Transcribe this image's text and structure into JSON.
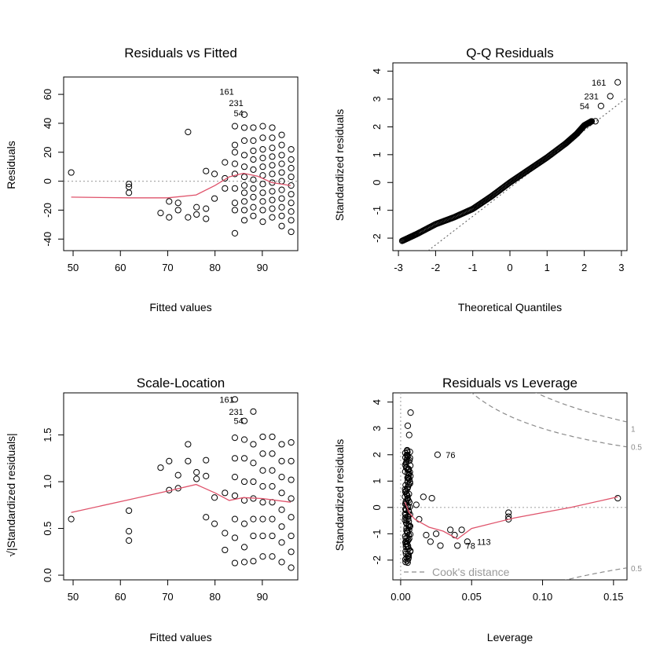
{
  "chart_data": [
    {
      "type": "scatter",
      "title": "Residuals vs Fitted",
      "xlabel": "Fitted values",
      "ylabel": "Residuals",
      "xlim": [
        48,
        97.5
      ],
      "ylim": [
        -48,
        72
      ],
      "xticks": [
        50,
        60,
        70,
        80,
        90
      ],
      "yticks": [
        -40,
        -20,
        0,
        20,
        40,
        60
      ],
      "ref_y": 0,
      "labels": [
        {
          "text": "161",
          "x": 84.5,
          "y": 62
        },
        {
          "text": "231",
          "x": 86.5,
          "y": 54
        },
        {
          "text": "54",
          "x": 86.5,
          "y": 47
        }
      ],
      "points": [
        [
          49.6,
          6
        ],
        [
          61.8,
          -2
        ],
        [
          61.8,
          -4
        ],
        [
          61.8,
          -8
        ],
        [
          68.5,
          -22
        ],
        [
          70.3,
          -25
        ],
        [
          70.3,
          -14
        ],
        [
          72.2,
          -20
        ],
        [
          72.2,
          -15
        ],
        [
          74.3,
          -25
        ],
        [
          74.3,
          34
        ],
        [
          76.1,
          -18
        ],
        [
          76.1,
          -23
        ],
        [
          78.1,
          -19
        ],
        [
          78.1,
          -26
        ],
        [
          78.1,
          7
        ],
        [
          79.9,
          -12
        ],
        [
          79.9,
          5
        ],
        [
          82.1,
          13
        ],
        [
          82.1,
          2
        ],
        [
          82.1,
          -5
        ],
        [
          84.2,
          -36
        ],
        [
          84.2,
          38
        ],
        [
          84.2,
          25
        ],
        [
          84.2,
          20
        ],
        [
          84.2,
          12
        ],
        [
          84.2,
          5
        ],
        [
          84.2,
          -5
        ],
        [
          84.2,
          -15
        ],
        [
          84.2,
          -20
        ],
        [
          86.2,
          46
        ],
        [
          86.2,
          37
        ],
        [
          86.2,
          28
        ],
        [
          86.2,
          18
        ],
        [
          86.2,
          10
        ],
        [
          86.2,
          3
        ],
        [
          86.2,
          -3
        ],
        [
          86.2,
          -8
        ],
        [
          86.2,
          -14
        ],
        [
          86.2,
          -20
        ],
        [
          86.2,
          -27
        ],
        [
          88.1,
          37
        ],
        [
          88.1,
          28
        ],
        [
          88.1,
          21
        ],
        [
          88.1,
          15
        ],
        [
          88.1,
          8
        ],
        [
          88.1,
          1
        ],
        [
          88.1,
          -5
        ],
        [
          88.1,
          -11
        ],
        [
          88.1,
          -18
        ],
        [
          88.1,
          -24
        ],
        [
          90.1,
          38
        ],
        [
          90.1,
          30
        ],
        [
          90.1,
          22
        ],
        [
          90.1,
          16
        ],
        [
          90.1,
          10
        ],
        [
          90.1,
          4
        ],
        [
          90.1,
          -2
        ],
        [
          90.1,
          -8
        ],
        [
          90.1,
          -14
        ],
        [
          90.1,
          -20
        ],
        [
          90.1,
          -28
        ],
        [
          92.1,
          37
        ],
        [
          92.1,
          30
        ],
        [
          92.1,
          23
        ],
        [
          92.1,
          17
        ],
        [
          92.1,
          11
        ],
        [
          92.1,
          5
        ],
        [
          92.1,
          -1
        ],
        [
          92.1,
          -7
        ],
        [
          92.1,
          -13
        ],
        [
          92.1,
          -19
        ],
        [
          92.1,
          -25
        ],
        [
          94.1,
          32
        ],
        [
          94.1,
          25
        ],
        [
          94.1,
          18
        ],
        [
          94.1,
          12
        ],
        [
          94.1,
          6
        ],
        [
          94.1,
          0
        ],
        [
          94.1,
          -6
        ],
        [
          94.1,
          -12
        ],
        [
          94.1,
          -18
        ],
        [
          94.1,
          -24
        ],
        [
          94.1,
          -31
        ],
        [
          96.1,
          22
        ],
        [
          96.1,
          15
        ],
        [
          96.1,
          9
        ],
        [
          96.1,
          3
        ],
        [
          96.1,
          -3
        ],
        [
          96.1,
          -9
        ],
        [
          96.1,
          -15
        ],
        [
          96.1,
          -21
        ],
        [
          96.1,
          -27
        ],
        [
          96.1,
          -35
        ]
      ],
      "smoother": [
        [
          49.6,
          -11
        ],
        [
          62,
          -11.5
        ],
        [
          70,
          -11.5
        ],
        [
          76,
          -9.5
        ],
        [
          80,
          -3
        ],
        [
          83,
          3
        ],
        [
          86,
          5.5
        ],
        [
          89,
          3.5
        ],
        [
          92,
          -1
        ],
        [
          96,
          -3
        ]
      ]
    },
    {
      "type": "scatter",
      "title": "Q-Q Residuals",
      "xlabel": "Theoretical Quantiles",
      "ylabel": "Standardized residuals",
      "xlim": [
        -3.15,
        3.15
      ],
      "ylim": [
        -2.45,
        4.3
      ],
      "xticks": [
        -3,
        -2,
        -1,
        0,
        1,
        2,
        3
      ],
      "yticks": [
        -2,
        -1,
        0,
        1,
        2,
        3,
        4
      ],
      "qqline": [
        [
          -2.2,
          -2.45
        ],
        [
          3.15,
          3.05
        ]
      ],
      "labels": [
        {
          "text": "161",
          "x": 2.65,
          "y": 3.6
        },
        {
          "text": "231",
          "x": 2.45,
          "y": 3.1
        },
        {
          "text": "54",
          "x": 2.2,
          "y": 2.75
        }
      ],
      "curve": [
        [
          -2.9,
          -2.1
        ],
        [
          -2.5,
          -1.85
        ],
        [
          -2.0,
          -1.5
        ],
        [
          -1.5,
          -1.25
        ],
        [
          -1.0,
          -0.95
        ],
        [
          -0.5,
          -0.5
        ],
        [
          0.0,
          0.0
        ],
        [
          0.5,
          0.45
        ],
        [
          1.0,
          0.9
        ],
        [
          1.5,
          1.4
        ],
        [
          1.8,
          1.75
        ],
        [
          2.0,
          2.05
        ],
        [
          2.2,
          2.2
        ]
      ],
      "tail_points": [
        [
          2.3,
          2.2
        ],
        [
          2.45,
          2.75
        ],
        [
          2.7,
          3.1
        ],
        [
          2.9,
          3.6
        ]
      ]
    },
    {
      "type": "scatter",
      "title": "Scale-Location",
      "xlabel": "Fitted values",
      "ylabel": "√|Standardized residuals|",
      "xlim": [
        48,
        97.5
      ],
      "ylim": [
        -0.05,
        1.95
      ],
      "xticks": [
        50,
        60,
        70,
        80,
        90
      ],
      "yticks": [
        0.0,
        0.5,
        1.0,
        1.5
      ],
      "labels": [
        {
          "text": "161",
          "x": 84.5,
          "y": 1.88
        },
        {
          "text": "231",
          "x": 86.5,
          "y": 1.75
        },
        {
          "text": "54",
          "x": 86.5,
          "y": 1.65
        }
      ],
      "points": [
        [
          49.6,
          0.6
        ],
        [
          61.8,
          0.37
        ],
        [
          61.8,
          0.47
        ],
        [
          61.8,
          0.69
        ],
        [
          68.5,
          1.15
        ],
        [
          70.3,
          1.22
        ],
        [
          70.3,
          0.91
        ],
        [
          72.2,
          1.07
        ],
        [
          72.2,
          0.93
        ],
        [
          74.3,
          1.22
        ],
        [
          74.3,
          1.4
        ],
        [
          76.1,
          1.03
        ],
        [
          76.1,
          1.1
        ],
        [
          78.1,
          1.23
        ],
        [
          78.1,
          1.06
        ],
        [
          78.1,
          0.62
        ],
        [
          79.9,
          0.83
        ],
        [
          79.9,
          0.55
        ],
        [
          82.1,
          0.88
        ],
        [
          82.1,
          0.45
        ],
        [
          82.1,
          0.27
        ],
        [
          84.2,
          1.88
        ],
        [
          84.2,
          1.47
        ],
        [
          84.2,
          1.25
        ],
        [
          84.2,
          1.05
        ],
        [
          84.2,
          0.85
        ],
        [
          84.2,
          0.6
        ],
        [
          84.2,
          0.4
        ],
        [
          84.2,
          0.13
        ],
        [
          86.2,
          1.65
        ],
        [
          86.2,
          1.45
        ],
        [
          86.2,
          1.25
        ],
        [
          86.2,
          1.0
        ],
        [
          86.2,
          0.8
        ],
        [
          86.2,
          0.55
        ],
        [
          86.2,
          0.3
        ],
        [
          86.2,
          0.14
        ],
        [
          88.1,
          1.75
        ],
        [
          88.1,
          1.4
        ],
        [
          88.1,
          1.2
        ],
        [
          88.1,
          1.0
        ],
        [
          88.1,
          0.82
        ],
        [
          88.1,
          0.6
        ],
        [
          88.1,
          0.42
        ],
        [
          88.1,
          0.15
        ],
        [
          90.1,
          1.48
        ],
        [
          90.1,
          1.3
        ],
        [
          90.1,
          1.12
        ],
        [
          90.1,
          0.95
        ],
        [
          90.1,
          0.78
        ],
        [
          90.1,
          0.6
        ],
        [
          90.1,
          0.42
        ],
        [
          90.1,
          0.2
        ],
        [
          92.1,
          1.48
        ],
        [
          92.1,
          1.3
        ],
        [
          92.1,
          1.12
        ],
        [
          92.1,
          0.95
        ],
        [
          92.1,
          0.78
        ],
        [
          92.1,
          0.6
        ],
        [
          92.1,
          0.42
        ],
        [
          92.1,
          0.2
        ],
        [
          94.1,
          1.4
        ],
        [
          94.1,
          1.22
        ],
        [
          94.1,
          1.05
        ],
        [
          94.1,
          0.88
        ],
        [
          94.1,
          0.7
        ],
        [
          94.1,
          0.52
        ],
        [
          94.1,
          0.35
        ],
        [
          94.1,
          0.14
        ],
        [
          96.1,
          1.42
        ],
        [
          96.1,
          1.22
        ],
        [
          96.1,
          1.02
        ],
        [
          96.1,
          0.82
        ],
        [
          96.1,
          0.62
        ],
        [
          96.1,
          0.42
        ],
        [
          96.1,
          0.25
        ],
        [
          96.1,
          0.08
        ]
      ],
      "smoother": [
        [
          49.6,
          0.67
        ],
        [
          62,
          0.81
        ],
        [
          70,
          0.9
        ],
        [
          76,
          0.97
        ],
        [
          80,
          0.88
        ],
        [
          83,
          0.8
        ],
        [
          86,
          0.83
        ],
        [
          90,
          0.82
        ],
        [
          96,
          0.78
        ]
      ]
    },
    {
      "type": "scatter",
      "title": "Residuals vs Leverage",
      "xlabel": "Leverage",
      "ylabel": "Standardized residuals",
      "xlim": [
        -0.0055,
        0.1595
      ],
      "ylim": [
        -2.75,
        4.35
      ],
      "xticks": [
        0.0,
        0.05,
        0.1,
        0.15
      ],
      "yticks": [
        -2,
        -1,
        0,
        1,
        2,
        3,
        4
      ],
      "ref_y": 0,
      "legend": "Cook's distance",
      "cook_labels": [
        {
          "text": "1",
          "y": 3.0
        },
        {
          "text": "0.5",
          "y": 2.3
        },
        {
          "text": "0.5",
          "y": -2.3
        }
      ],
      "labels": [
        {
          "text": "76",
          "x": 0.029,
          "y": 2.0
        },
        {
          "text": "78",
          "x": 0.043,
          "y": -1.45
        },
        {
          "text": "113",
          "x": 0.051,
          "y": -1.3
        }
      ],
      "cluster": {
        "x": [
          0.003,
          0.007
        ],
        "y": [
          -2.1,
          2.2
        ]
      },
      "points": [
        [
          0.007,
          3.6
        ],
        [
          0.005,
          3.1
        ],
        [
          0.006,
          2.75
        ],
        [
          0.026,
          2.0
        ],
        [
          0.016,
          0.4
        ],
        [
          0.022,
          0.35
        ],
        [
          0.011,
          0.1
        ],
        [
          0.013,
          -0.45
        ],
        [
          0.018,
          -1.05
        ],
        [
          0.021,
          -1.3
        ],
        [
          0.025,
          -1.0
        ],
        [
          0.028,
          -1.45
        ],
        [
          0.035,
          -0.85
        ],
        [
          0.038,
          -1.05
        ],
        [
          0.04,
          -1.45
        ],
        [
          0.043,
          -0.85
        ],
        [
          0.047,
          -1.3
        ],
        [
          0.076,
          -0.2
        ],
        [
          0.076,
          -0.35
        ],
        [
          0.076,
          -0.45
        ],
        [
          0.153,
          0.35
        ]
      ],
      "smoother": [
        [
          0.003,
          0.2
        ],
        [
          0.006,
          -0.2
        ],
        [
          0.01,
          -0.45
        ],
        [
          0.02,
          -0.75
        ],
        [
          0.03,
          -0.9
        ],
        [
          0.04,
          -1.2
        ],
        [
          0.05,
          -0.8
        ],
        [
          0.08,
          -0.4
        ],
        [
          0.12,
          0.0
        ],
        [
          0.153,
          0.4
        ]
      ]
    }
  ]
}
